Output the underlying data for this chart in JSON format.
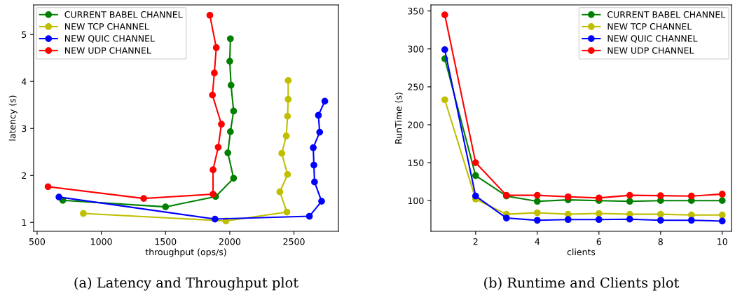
{
  "chart_data": [
    {
      "type": "line",
      "title": "(a) Latency and Throughput plot",
      "xlabel": "throughput (ops/s)",
      "ylabel": "latency (s)",
      "xlim": [
        473,
        2846
      ],
      "ylim": [
        0.81,
        5.63
      ],
      "xticks": [
        500,
        1000,
        1500,
        2000,
        2500
      ],
      "yticks": [
        1,
        2,
        3,
        4,
        5
      ],
      "grid": false,
      "legend": "top left",
      "marker": "circle",
      "line_style": "solid",
      "series": [
        {
          "name": "CURRENT BABEL CHANNEL",
          "color": "#008000",
          "x": [
            700,
            1500,
            1890,
            2030,
            1985,
            2005,
            2030,
            2010,
            2000,
            2005
          ],
          "values": [
            1.47,
            1.33,
            1.55,
            1.94,
            2.48,
            2.93,
            3.37,
            3.92,
            4.43,
            4.91
          ]
        },
        {
          "name": "NEW TCP CHANNEL",
          "color": "#bfbf00",
          "x": [
            860,
            1970,
            2445,
            2390,
            2450,
            2405,
            2440,
            2450,
            2455,
            2455
          ],
          "values": [
            1.19,
            1.03,
            1.22,
            1.65,
            2.02,
            2.47,
            2.84,
            3.26,
            3.62,
            4.02
          ]
        },
        {
          "name": "NEW QUIC CHANNEL",
          "color": "#0000ff",
          "x": [
            670,
            1885,
            2620,
            2715,
            2660,
            2655,
            2650,
            2700,
            2690,
            2740
          ],
          "values": [
            1.54,
            1.07,
            1.13,
            1.45,
            1.86,
            2.22,
            2.59,
            2.92,
            3.28,
            3.58
          ]
        },
        {
          "name": "NEW UDP CHANNEL",
          "color": "#ff0000",
          "x": [
            585,
            1330,
            1870,
            1870,
            1910,
            1935,
            1865,
            1880,
            1895,
            1845
          ],
          "values": [
            1.76,
            1.51,
            1.6,
            2.12,
            2.6,
            3.09,
            3.71,
            4.18,
            4.72,
            5.41
          ]
        }
      ]
    },
    {
      "type": "line",
      "title": "(b) Runtime and Clients plot",
      "xlabel": "clients",
      "ylabel": "RunTime (s)",
      "x": [
        1,
        2,
        3,
        4,
        5,
        6,
        7,
        8,
        9,
        10
      ],
      "xlim": [
        0.55,
        10.3
      ],
      "ylim": [
        59.5,
        358
      ],
      "xticks": [
        2,
        4,
        6,
        8,
        10
      ],
      "yticks": [
        100,
        150,
        200,
        250,
        300,
        350
      ],
      "grid": false,
      "legend": "top right",
      "marker": "circle",
      "line_style": "solid",
      "series": [
        {
          "name": "CURRENT BABEL CHANNEL",
          "color": "#008000",
          "values": [
            287,
            133,
            106,
            99,
            101,
            100,
            99,
            100,
            100,
            100
          ]
        },
        {
          "name": "NEW TCP CHANNEL",
          "color": "#bfbf00",
          "values": [
            233,
            102,
            82,
            84,
            82,
            83,
            82,
            82,
            81,
            81
          ]
        },
        {
          "name": "NEW QUIC CHANNEL",
          "color": "#0000ff",
          "values": [
            299,
            106,
            77,
            74,
            75,
            75,
            75.5,
            74,
            74,
            73
          ]
        },
        {
          "name": "NEW UDP CHANNEL",
          "color": "#ff0000",
          "values": [
            345,
            150,
            107,
            107,
            105,
            103.5,
            107,
            106.5,
            106,
            108.5
          ]
        }
      ]
    }
  ]
}
